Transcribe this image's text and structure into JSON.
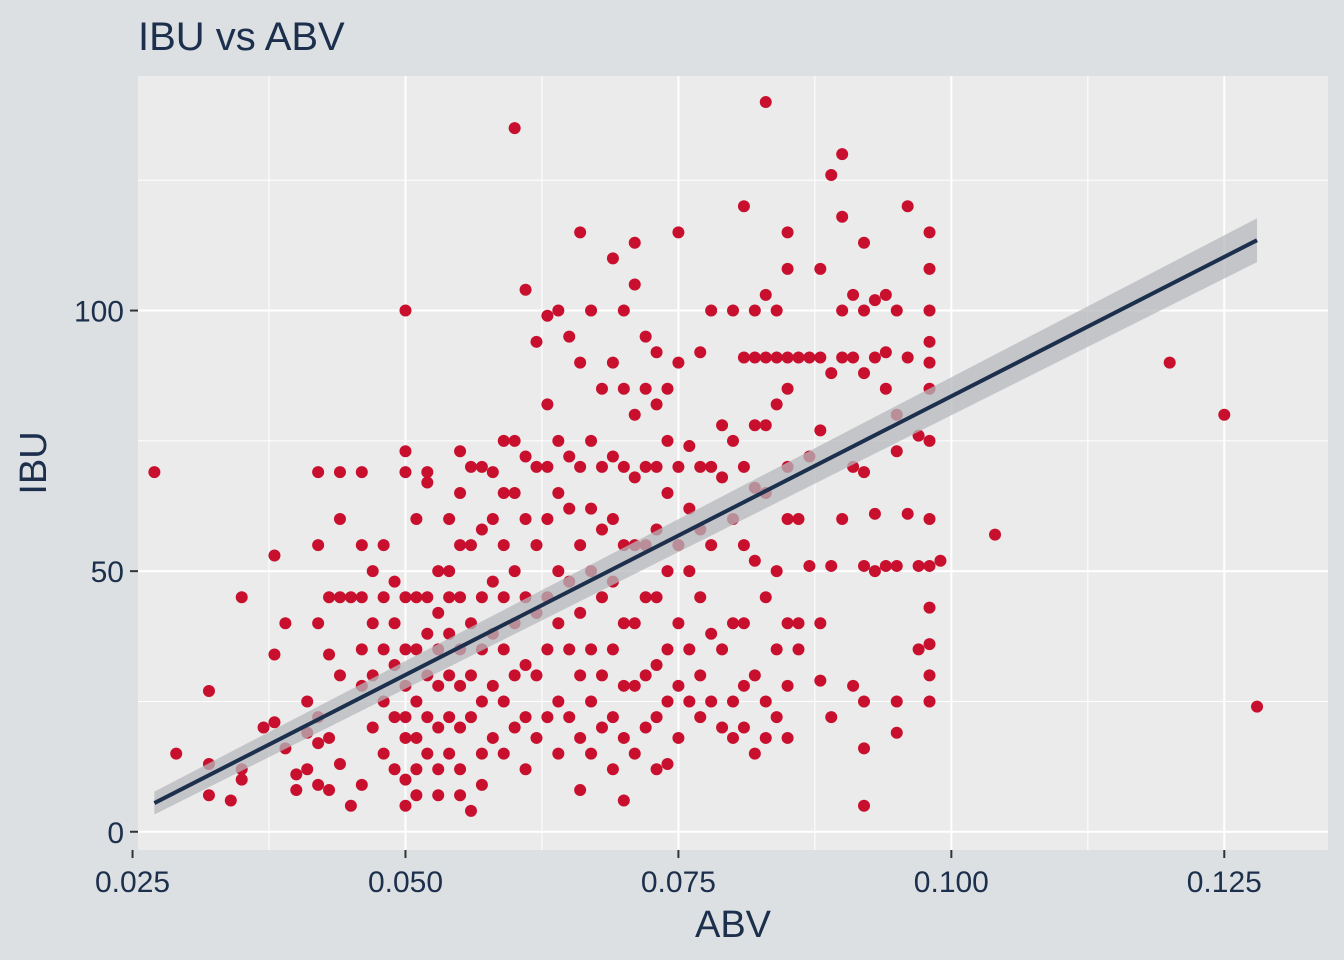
{
  "chart_data": {
    "type": "scatter",
    "title": "IBU vs ABV",
    "xlabel": "ABV",
    "ylabel": "IBU",
    "xlim": [
      0.0255,
      0.1345
    ],
    "ylim": [
      -3.5,
      145
    ],
    "x_ticks": [
      0.025,
      0.05,
      0.075,
      0.1,
      0.125
    ],
    "x_tick_labels": [
      "0.025",
      "0.050",
      "0.075",
      "0.100",
      "0.125"
    ],
    "y_ticks": [
      0,
      50,
      100
    ],
    "y_tick_labels": [
      "0",
      "50",
      "100"
    ],
    "grid": true,
    "legend": "none",
    "colors": {
      "point": "#c8102e",
      "trend_line": "#1c2f4c",
      "confidence_band": "#b5b8bc",
      "panel": "#ebebeb",
      "background": "#dde0e2",
      "grid": "#ffffff"
    },
    "trend": {
      "method": "linear fit",
      "x": [
        0.027,
        0.128
      ],
      "y": [
        5.5,
        113.5
      ],
      "band_halfwidth": [
        2.2,
        4.2
      ]
    },
    "points": [
      [
        0.027,
        69
      ],
      [
        0.029,
        15
      ],
      [
        0.032,
        27
      ],
      [
        0.032,
        13
      ],
      [
        0.032,
        7
      ],
      [
        0.034,
        6
      ],
      [
        0.035,
        45
      ],
      [
        0.035,
        12
      ],
      [
        0.035,
        10
      ],
      [
        0.037,
        20
      ],
      [
        0.038,
        53
      ],
      [
        0.038,
        34
      ],
      [
        0.038,
        21
      ],
      [
        0.039,
        40
      ],
      [
        0.039,
        16
      ],
      [
        0.04,
        11
      ],
      [
        0.04,
        8
      ],
      [
        0.041,
        25
      ],
      [
        0.041,
        19
      ],
      [
        0.041,
        12
      ],
      [
        0.042,
        69
      ],
      [
        0.042,
        40
      ],
      [
        0.042,
        55
      ],
      [
        0.042,
        22
      ],
      [
        0.042,
        17
      ],
      [
        0.042,
        9
      ],
      [
        0.043,
        45
      ],
      [
        0.043,
        34
      ],
      [
        0.043,
        18
      ],
      [
        0.043,
        8
      ],
      [
        0.044,
        69
      ],
      [
        0.044,
        60
      ],
      [
        0.044,
        45
      ],
      [
        0.044,
        30
      ],
      [
        0.044,
        13
      ],
      [
        0.045,
        45
      ],
      [
        0.045,
        5
      ],
      [
        0.046,
        69
      ],
      [
        0.046,
        55
      ],
      [
        0.046,
        45
      ],
      [
        0.046,
        35
      ],
      [
        0.046,
        28
      ],
      [
        0.046,
        9
      ],
      [
        0.047,
        50
      ],
      [
        0.047,
        40
      ],
      [
        0.047,
        30
      ],
      [
        0.047,
        20
      ],
      [
        0.048,
        55
      ],
      [
        0.048,
        45
      ],
      [
        0.048,
        35
      ],
      [
        0.048,
        25
      ],
      [
        0.048,
        15
      ],
      [
        0.049,
        48
      ],
      [
        0.049,
        40
      ],
      [
        0.049,
        32
      ],
      [
        0.049,
        22
      ],
      [
        0.049,
        12
      ],
      [
        0.05,
        100
      ],
      [
        0.05,
        73
      ],
      [
        0.05,
        69
      ],
      [
        0.05,
        45
      ],
      [
        0.05,
        35
      ],
      [
        0.05,
        28
      ],
      [
        0.05,
        22
      ],
      [
        0.05,
        18
      ],
      [
        0.05,
        10
      ],
      [
        0.05,
        5
      ],
      [
        0.051,
        60
      ],
      [
        0.051,
        45
      ],
      [
        0.051,
        35
      ],
      [
        0.051,
        25
      ],
      [
        0.051,
        18
      ],
      [
        0.051,
        12
      ],
      [
        0.051,
        7
      ],
      [
        0.052,
        69
      ],
      [
        0.052,
        67
      ],
      [
        0.052,
        45
      ],
      [
        0.052,
        38
      ],
      [
        0.052,
        30
      ],
      [
        0.052,
        22
      ],
      [
        0.052,
        15
      ],
      [
        0.053,
        50
      ],
      [
        0.053,
        42
      ],
      [
        0.053,
        35
      ],
      [
        0.053,
        28
      ],
      [
        0.053,
        20
      ],
      [
        0.053,
        12
      ],
      [
        0.053,
        7
      ],
      [
        0.054,
        60
      ],
      [
        0.054,
        50
      ],
      [
        0.054,
        45
      ],
      [
        0.054,
        38
      ],
      [
        0.054,
        30
      ],
      [
        0.054,
        22
      ],
      [
        0.054,
        15
      ],
      [
        0.055,
        73
      ],
      [
        0.055,
        65
      ],
      [
        0.055,
        55
      ],
      [
        0.055,
        45
      ],
      [
        0.055,
        35
      ],
      [
        0.055,
        28
      ],
      [
        0.055,
        20
      ],
      [
        0.055,
        12
      ],
      [
        0.055,
        7
      ],
      [
        0.056,
        70
      ],
      [
        0.056,
        55
      ],
      [
        0.056,
        40
      ],
      [
        0.056,
        30
      ],
      [
        0.056,
        22
      ],
      [
        0.056,
        4
      ],
      [
        0.057,
        70
      ],
      [
        0.057,
        58
      ],
      [
        0.057,
        45
      ],
      [
        0.057,
        35
      ],
      [
        0.057,
        25
      ],
      [
        0.057,
        15
      ],
      [
        0.057,
        9
      ],
      [
        0.058,
        69
      ],
      [
        0.058,
        60
      ],
      [
        0.058,
        48
      ],
      [
        0.058,
        38
      ],
      [
        0.058,
        28
      ],
      [
        0.058,
        18
      ],
      [
        0.059,
        75
      ],
      [
        0.059,
        65
      ],
      [
        0.059,
        55
      ],
      [
        0.059,
        45
      ],
      [
        0.059,
        35
      ],
      [
        0.059,
        25
      ],
      [
        0.059,
        15
      ],
      [
        0.06,
        135
      ],
      [
        0.06,
        75
      ],
      [
        0.06,
        65
      ],
      [
        0.06,
        50
      ],
      [
        0.06,
        40
      ],
      [
        0.06,
        30
      ],
      [
        0.06,
        20
      ],
      [
        0.061,
        104
      ],
      [
        0.061,
        72
      ],
      [
        0.061,
        60
      ],
      [
        0.061,
        45
      ],
      [
        0.061,
        32
      ],
      [
        0.061,
        22
      ],
      [
        0.061,
        12
      ],
      [
        0.062,
        94
      ],
      [
        0.062,
        70
      ],
      [
        0.062,
        55
      ],
      [
        0.062,
        42
      ],
      [
        0.062,
        30
      ],
      [
        0.062,
        18
      ],
      [
        0.063,
        99
      ],
      [
        0.063,
        82
      ],
      [
        0.063,
        70
      ],
      [
        0.063,
        60
      ],
      [
        0.063,
        45
      ],
      [
        0.063,
        35
      ],
      [
        0.063,
        22
      ],
      [
        0.064,
        100
      ],
      [
        0.064,
        75
      ],
      [
        0.064,
        65
      ],
      [
        0.064,
        50
      ],
      [
        0.064,
        40
      ],
      [
        0.064,
        25
      ],
      [
        0.064,
        15
      ],
      [
        0.065,
        95
      ],
      [
        0.065,
        72
      ],
      [
        0.065,
        62
      ],
      [
        0.065,
        48
      ],
      [
        0.065,
        35
      ],
      [
        0.065,
        22
      ],
      [
        0.066,
        115
      ],
      [
        0.066,
        90
      ],
      [
        0.066,
        70
      ],
      [
        0.066,
        55
      ],
      [
        0.066,
        42
      ],
      [
        0.066,
        30
      ],
      [
        0.066,
        18
      ],
      [
        0.066,
        8
      ],
      [
        0.067,
        100
      ],
      [
        0.067,
        75
      ],
      [
        0.067,
        62
      ],
      [
        0.067,
        50
      ],
      [
        0.067,
        35
      ],
      [
        0.067,
        25
      ],
      [
        0.067,
        15
      ],
      [
        0.068,
        85
      ],
      [
        0.068,
        70
      ],
      [
        0.068,
        58
      ],
      [
        0.068,
        45
      ],
      [
        0.068,
        30
      ],
      [
        0.068,
        20
      ],
      [
        0.069,
        110
      ],
      [
        0.069,
        90
      ],
      [
        0.069,
        72
      ],
      [
        0.069,
        60
      ],
      [
        0.069,
        48
      ],
      [
        0.069,
        35
      ],
      [
        0.069,
        22
      ],
      [
        0.069,
        12
      ],
      [
        0.07,
        100
      ],
      [
        0.07,
        85
      ],
      [
        0.07,
        70
      ],
      [
        0.07,
        55
      ],
      [
        0.07,
        40
      ],
      [
        0.07,
        28
      ],
      [
        0.07,
        18
      ],
      [
        0.07,
        6
      ],
      [
        0.071,
        113
      ],
      [
        0.071,
        105
      ],
      [
        0.071,
        80
      ],
      [
        0.071,
        68
      ],
      [
        0.071,
        55
      ],
      [
        0.071,
        40
      ],
      [
        0.071,
        28
      ],
      [
        0.071,
        15
      ],
      [
        0.072,
        95
      ],
      [
        0.072,
        85
      ],
      [
        0.072,
        70
      ],
      [
        0.072,
        55
      ],
      [
        0.072,
        45
      ],
      [
        0.072,
        30
      ],
      [
        0.072,
        20
      ],
      [
        0.073,
        92
      ],
      [
        0.073,
        82
      ],
      [
        0.073,
        70
      ],
      [
        0.073,
        58
      ],
      [
        0.073,
        45
      ],
      [
        0.073,
        32
      ],
      [
        0.073,
        22
      ],
      [
        0.073,
        12
      ],
      [
        0.074,
        85
      ],
      [
        0.074,
        75
      ],
      [
        0.074,
        65
      ],
      [
        0.074,
        50
      ],
      [
        0.074,
        35
      ],
      [
        0.074,
        25
      ],
      [
        0.074,
        13
      ],
      [
        0.075,
        115
      ],
      [
        0.075,
        90
      ],
      [
        0.075,
        70
      ],
      [
        0.075,
        55
      ],
      [
        0.075,
        40
      ],
      [
        0.075,
        28
      ],
      [
        0.075,
        18
      ],
      [
        0.076,
        74
      ],
      [
        0.076,
        62
      ],
      [
        0.076,
        50
      ],
      [
        0.076,
        35
      ],
      [
        0.076,
        25
      ],
      [
        0.077,
        92
      ],
      [
        0.077,
        70
      ],
      [
        0.077,
        58
      ],
      [
        0.077,
        45
      ],
      [
        0.077,
        30
      ],
      [
        0.077,
        22
      ],
      [
        0.078,
        100
      ],
      [
        0.078,
        70
      ],
      [
        0.078,
        55
      ],
      [
        0.078,
        38
      ],
      [
        0.078,
        25
      ],
      [
        0.079,
        78
      ],
      [
        0.079,
        68
      ],
      [
        0.079,
        35
      ],
      [
        0.079,
        20
      ],
      [
        0.08,
        100
      ],
      [
        0.08,
        75
      ],
      [
        0.08,
        60
      ],
      [
        0.08,
        40
      ],
      [
        0.08,
        25
      ],
      [
        0.08,
        18
      ],
      [
        0.081,
        120
      ],
      [
        0.081,
        91
      ],
      [
        0.081,
        70
      ],
      [
        0.081,
        55
      ],
      [
        0.081,
        40
      ],
      [
        0.081,
        28
      ],
      [
        0.081,
        20
      ],
      [
        0.082,
        100
      ],
      [
        0.082,
        91
      ],
      [
        0.082,
        78
      ],
      [
        0.082,
        66
      ],
      [
        0.082,
        52
      ],
      [
        0.082,
        30
      ],
      [
        0.082,
        15
      ],
      [
        0.083,
        140
      ],
      [
        0.083,
        103
      ],
      [
        0.083,
        91
      ],
      [
        0.083,
        78
      ],
      [
        0.083,
        65
      ],
      [
        0.083,
        45
      ],
      [
        0.083,
        25
      ],
      [
        0.083,
        18
      ],
      [
        0.084,
        100
      ],
      [
        0.084,
        91
      ],
      [
        0.084,
        82
      ],
      [
        0.084,
        50
      ],
      [
        0.084,
        35
      ],
      [
        0.084,
        22
      ],
      [
        0.085,
        115
      ],
      [
        0.085,
        108
      ],
      [
        0.085,
        91
      ],
      [
        0.085,
        85
      ],
      [
        0.085,
        70
      ],
      [
        0.085,
        60
      ],
      [
        0.085,
        40
      ],
      [
        0.085,
        28
      ],
      [
        0.085,
        18
      ],
      [
        0.086,
        91
      ],
      [
        0.086,
        60
      ],
      [
        0.086,
        40
      ],
      [
        0.086,
        35
      ],
      [
        0.087,
        91
      ],
      [
        0.087,
        72
      ],
      [
        0.087,
        51
      ],
      [
        0.088,
        108
      ],
      [
        0.088,
        91
      ],
      [
        0.088,
        77
      ],
      [
        0.088,
        40
      ],
      [
        0.088,
        29
      ],
      [
        0.089,
        126
      ],
      [
        0.089,
        88
      ],
      [
        0.089,
        51
      ],
      [
        0.089,
        22
      ],
      [
        0.09,
        130
      ],
      [
        0.09,
        118
      ],
      [
        0.09,
        100
      ],
      [
        0.09,
        91
      ],
      [
        0.09,
        60
      ],
      [
        0.091,
        103
      ],
      [
        0.091,
        91
      ],
      [
        0.091,
        70
      ],
      [
        0.091,
        28
      ],
      [
        0.092,
        113
      ],
      [
        0.092,
        100
      ],
      [
        0.092,
        88
      ],
      [
        0.092,
        69
      ],
      [
        0.092,
        51
      ],
      [
        0.092,
        25
      ],
      [
        0.092,
        16
      ],
      [
        0.092,
        5
      ],
      [
        0.093,
        102
      ],
      [
        0.093,
        91
      ],
      [
        0.093,
        61
      ],
      [
        0.093,
        50
      ],
      [
        0.094,
        103
      ],
      [
        0.094,
        92
      ],
      [
        0.094,
        85
      ],
      [
        0.094,
        51
      ],
      [
        0.095,
        100
      ],
      [
        0.095,
        80
      ],
      [
        0.095,
        73
      ],
      [
        0.095,
        51
      ],
      [
        0.095,
        25
      ],
      [
        0.095,
        19
      ],
      [
        0.096,
        120
      ],
      [
        0.096,
        91
      ],
      [
        0.096,
        61
      ],
      [
        0.097,
        76
      ],
      [
        0.097,
        51
      ],
      [
        0.097,
        35
      ],
      [
        0.098,
        115
      ],
      [
        0.098,
        108
      ],
      [
        0.098,
        100
      ],
      [
        0.098,
        94
      ],
      [
        0.098,
        90
      ],
      [
        0.098,
        85
      ],
      [
        0.098,
        75
      ],
      [
        0.098,
        60
      ],
      [
        0.098,
        51
      ],
      [
        0.098,
        43
      ],
      [
        0.098,
        36
      ],
      [
        0.098,
        30
      ],
      [
        0.098,
        25
      ],
      [
        0.099,
        52
      ],
      [
        0.104,
        57
      ],
      [
        0.12,
        90
      ],
      [
        0.125,
        80
      ],
      [
        0.128,
        24
      ]
    ]
  }
}
